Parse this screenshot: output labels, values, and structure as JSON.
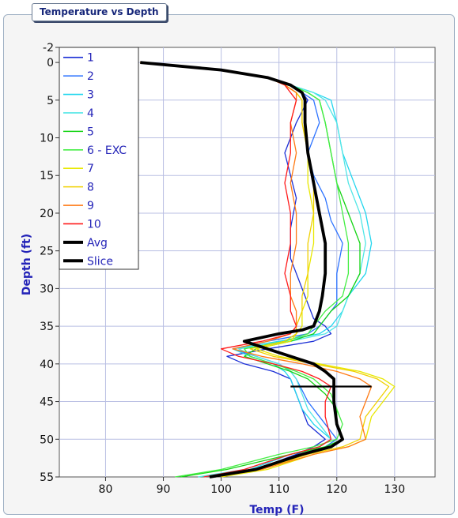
{
  "panel": {
    "title": "Temperature vs Depth"
  },
  "chart_data": {
    "type": "line",
    "title": "",
    "xlabel": "Temp (F)",
    "ylabel": "Depth (ft)",
    "xlim": [
      72,
      137
    ],
    "ylim": [
      -2,
      55
    ],
    "y_inverted": true,
    "xticks": [
      80,
      90,
      100,
      110,
      120,
      130
    ],
    "yticks": [
      -2,
      0,
      5,
      10,
      15,
      20,
      25,
      30,
      35,
      40,
      45,
      50,
      55
    ],
    "grid": true,
    "legend_position": "top-left",
    "series": [
      {
        "name": "1",
        "color": "#1b2fd6",
        "width": 1.3,
        "x": [
          86,
          100,
          108,
          112,
          114,
          115,
          113,
          111,
          112,
          113,
          112,
          112,
          114,
          116,
          118,
          119,
          116,
          108,
          101,
          104,
          109,
          112,
          113,
          114,
          115,
          118,
          116,
          113,
          106,
          98
        ],
        "y": [
          0,
          1,
          2,
          3,
          4,
          5,
          8,
          12,
          15,
          18,
          22,
          26,
          30,
          34,
          35,
          36,
          37,
          38,
          39,
          40,
          41,
          42,
          44,
          46,
          48,
          50,
          51,
          52,
          54,
          55
        ]
      },
      {
        "name": "2",
        "color": "#2d73ff",
        "width": 1.3,
        "x": [
          86,
          100,
          108,
          112,
          114,
          116,
          117,
          115,
          116,
          118,
          119,
          121,
          120,
          120,
          118,
          117,
          115,
          108,
          102,
          106,
          110,
          112,
          113,
          115,
          118,
          120,
          118,
          114,
          107,
          99
        ],
        "y": [
          0,
          1,
          2,
          3,
          4,
          5,
          8,
          12,
          15,
          18,
          21,
          24,
          28,
          32,
          34,
          35,
          36,
          37,
          38,
          39,
          40,
          41,
          42,
          45,
          48,
          50,
          51,
          52,
          54,
          55
        ]
      },
      {
        "name": "3",
        "color": "#22d6ee",
        "width": 1.3,
        "x": [
          86,
          100,
          108,
          112,
          116,
          119,
          120,
          121,
          123,
          125,
          126,
          125,
          122,
          121,
          119,
          117,
          110,
          102,
          105,
          109,
          111,
          112,
          113,
          114,
          116,
          119,
          117,
          112,
          105,
          97
        ],
        "y": [
          0,
          1,
          2,
          3,
          4,
          5,
          8,
          12,
          16,
          20,
          24,
          28,
          31,
          33,
          35,
          36,
          37,
          38,
          39,
          40,
          41,
          42,
          44,
          46,
          48,
          50,
          51,
          52,
          54,
          55
        ]
      },
      {
        "name": "4",
        "color": "#52e6e6",
        "width": 1.3,
        "x": [
          86,
          100,
          108,
          112,
          116,
          118,
          120,
          121,
          122,
          124,
          125,
          124,
          122,
          121,
          120,
          118,
          112,
          103,
          106,
          110,
          112,
          113,
          114,
          115,
          117,
          119,
          117,
          112,
          104,
          96
        ],
        "y": [
          0,
          1,
          2,
          3,
          4,
          5,
          8,
          12,
          16,
          20,
          24,
          28,
          31,
          33,
          35,
          36,
          37,
          38,
          39,
          40,
          41,
          42,
          44,
          46,
          48,
          50,
          51,
          52,
          54,
          55
        ]
      },
      {
        "name": "5",
        "color": "#14d414",
        "width": 1.3,
        "x": [
          86,
          100,
          108,
          112,
          115,
          117,
          118,
          119,
          120,
          122,
          124,
          124,
          122,
          119,
          117,
          116,
          112,
          106,
          104,
          108,
          112,
          115,
          118,
          120,
          120,
          121,
          118,
          112,
          101,
          93
        ],
        "y": [
          0,
          1,
          2,
          3,
          4,
          5,
          8,
          12,
          16,
          20,
          24,
          28,
          31,
          33,
          35,
          36,
          37,
          38,
          39,
          40,
          41,
          42,
          44,
          46,
          48,
          50,
          51,
          52,
          54,
          55
        ]
      },
      {
        "name": "6 - EXC",
        "color": "#44ee44",
        "width": 1.3,
        "x": [
          86,
          100,
          108,
          112,
          115,
          117,
          118,
          119,
          120,
          121,
          122,
          122,
          121,
          118,
          116,
          115,
          111,
          104,
          105,
          109,
          113,
          116,
          119,
          120,
          121,
          120,
          116,
          110,
          100,
          92
        ],
        "y": [
          0,
          1,
          2,
          3,
          4,
          5,
          8,
          12,
          16,
          20,
          24,
          28,
          31,
          33,
          35,
          36,
          37,
          38,
          39,
          40,
          41,
          42,
          44,
          46,
          48,
          50,
          51,
          52,
          54,
          55
        ]
      },
      {
        "name": "7",
        "color": "#e8e800",
        "width": 1.3,
        "x": [
          86,
          100,
          108,
          111,
          113,
          114,
          114,
          115,
          115,
          116,
          116,
          115,
          115,
          114,
          114,
          113,
          112,
          106,
          110,
          117,
          124,
          128,
          130,
          128,
          126,
          125,
          122,
          116,
          108,
          100
        ],
        "y": [
          0,
          1,
          2,
          3,
          4,
          5,
          8,
          12,
          16,
          20,
          24,
          28,
          31,
          33,
          35,
          36,
          37,
          38,
          39,
          40,
          41,
          42,
          43,
          45,
          47,
          50,
          51,
          52,
          54,
          55
        ]
      },
      {
        "name": "8",
        "color": "#f0d000",
        "width": 1.3,
        "x": [
          86,
          100,
          108,
          111,
          113,
          114,
          114,
          115,
          116,
          116,
          115,
          115,
          114,
          114,
          113,
          113,
          111,
          105,
          109,
          116,
          123,
          127,
          129,
          127,
          125,
          124,
          121,
          115,
          107,
          99
        ],
        "y": [
          0,
          1,
          2,
          3,
          4,
          5,
          8,
          12,
          16,
          20,
          24,
          28,
          31,
          33,
          35,
          36,
          37,
          38,
          39,
          40,
          41,
          42,
          43,
          45,
          47,
          50,
          51,
          52,
          54,
          55
        ]
      },
      {
        "name": "9",
        "color": "#ff7a14",
        "width": 1.3,
        "x": [
          86,
          100,
          108,
          111,
          113,
          113,
          112,
          113,
          112,
          113,
          113,
          112,
          112,
          113,
          113,
          112,
          108,
          102,
          107,
          114,
          120,
          124,
          126,
          125,
          124,
          125,
          122,
          116,
          107,
          99
        ],
        "y": [
          0,
          1,
          2,
          3,
          4,
          5,
          8,
          12,
          16,
          20,
          24,
          28,
          31,
          33,
          35,
          36,
          37,
          38,
          39,
          40,
          41,
          42,
          43,
          45,
          47,
          50,
          51,
          52,
          54,
          55
        ]
      },
      {
        "name": "10",
        "color": "#ff1b1b",
        "width": 1.3,
        "x": [
          86,
          100,
          108,
          111,
          112,
          113,
          112,
          112,
          111,
          112,
          112,
          111,
          112,
          112,
          113,
          112,
          107,
          100,
          103,
          109,
          114,
          117,
          119,
          118,
          118,
          119,
          117,
          112,
          104,
          97
        ],
        "y": [
          0,
          1,
          2,
          3,
          4,
          5,
          8,
          12,
          16,
          20,
          24,
          28,
          31,
          33,
          35,
          36,
          37,
          38,
          39,
          40,
          41,
          42,
          43,
          45,
          47,
          50,
          51,
          52,
          54,
          55
        ]
      },
      {
        "name": "Avg",
        "color": "#000000",
        "width": 3.8,
        "x": [
          86,
          100,
          108,
          112,
          114,
          114.5,
          114.5,
          115,
          116,
          117,
          118,
          118,
          117.5,
          117,
          116,
          114,
          110,
          104,
          108,
          112,
          116,
          118,
          119.5,
          119.5,
          120,
          121,
          119,
          114,
          106,
          98
        ],
        "y": [
          0,
          1,
          2,
          3,
          4,
          5,
          8,
          12,
          16,
          20,
          24,
          28,
          31,
          33,
          35,
          35.5,
          36,
          37,
          38,
          39,
          40,
          41,
          42,
          45,
          48,
          50,
          51,
          52,
          54,
          55
        ]
      },
      {
        "name": "Slice",
        "color": "#000000",
        "width": 2.2,
        "x": [
          112,
          126
        ],
        "y": [
          43,
          43
        ]
      }
    ]
  }
}
